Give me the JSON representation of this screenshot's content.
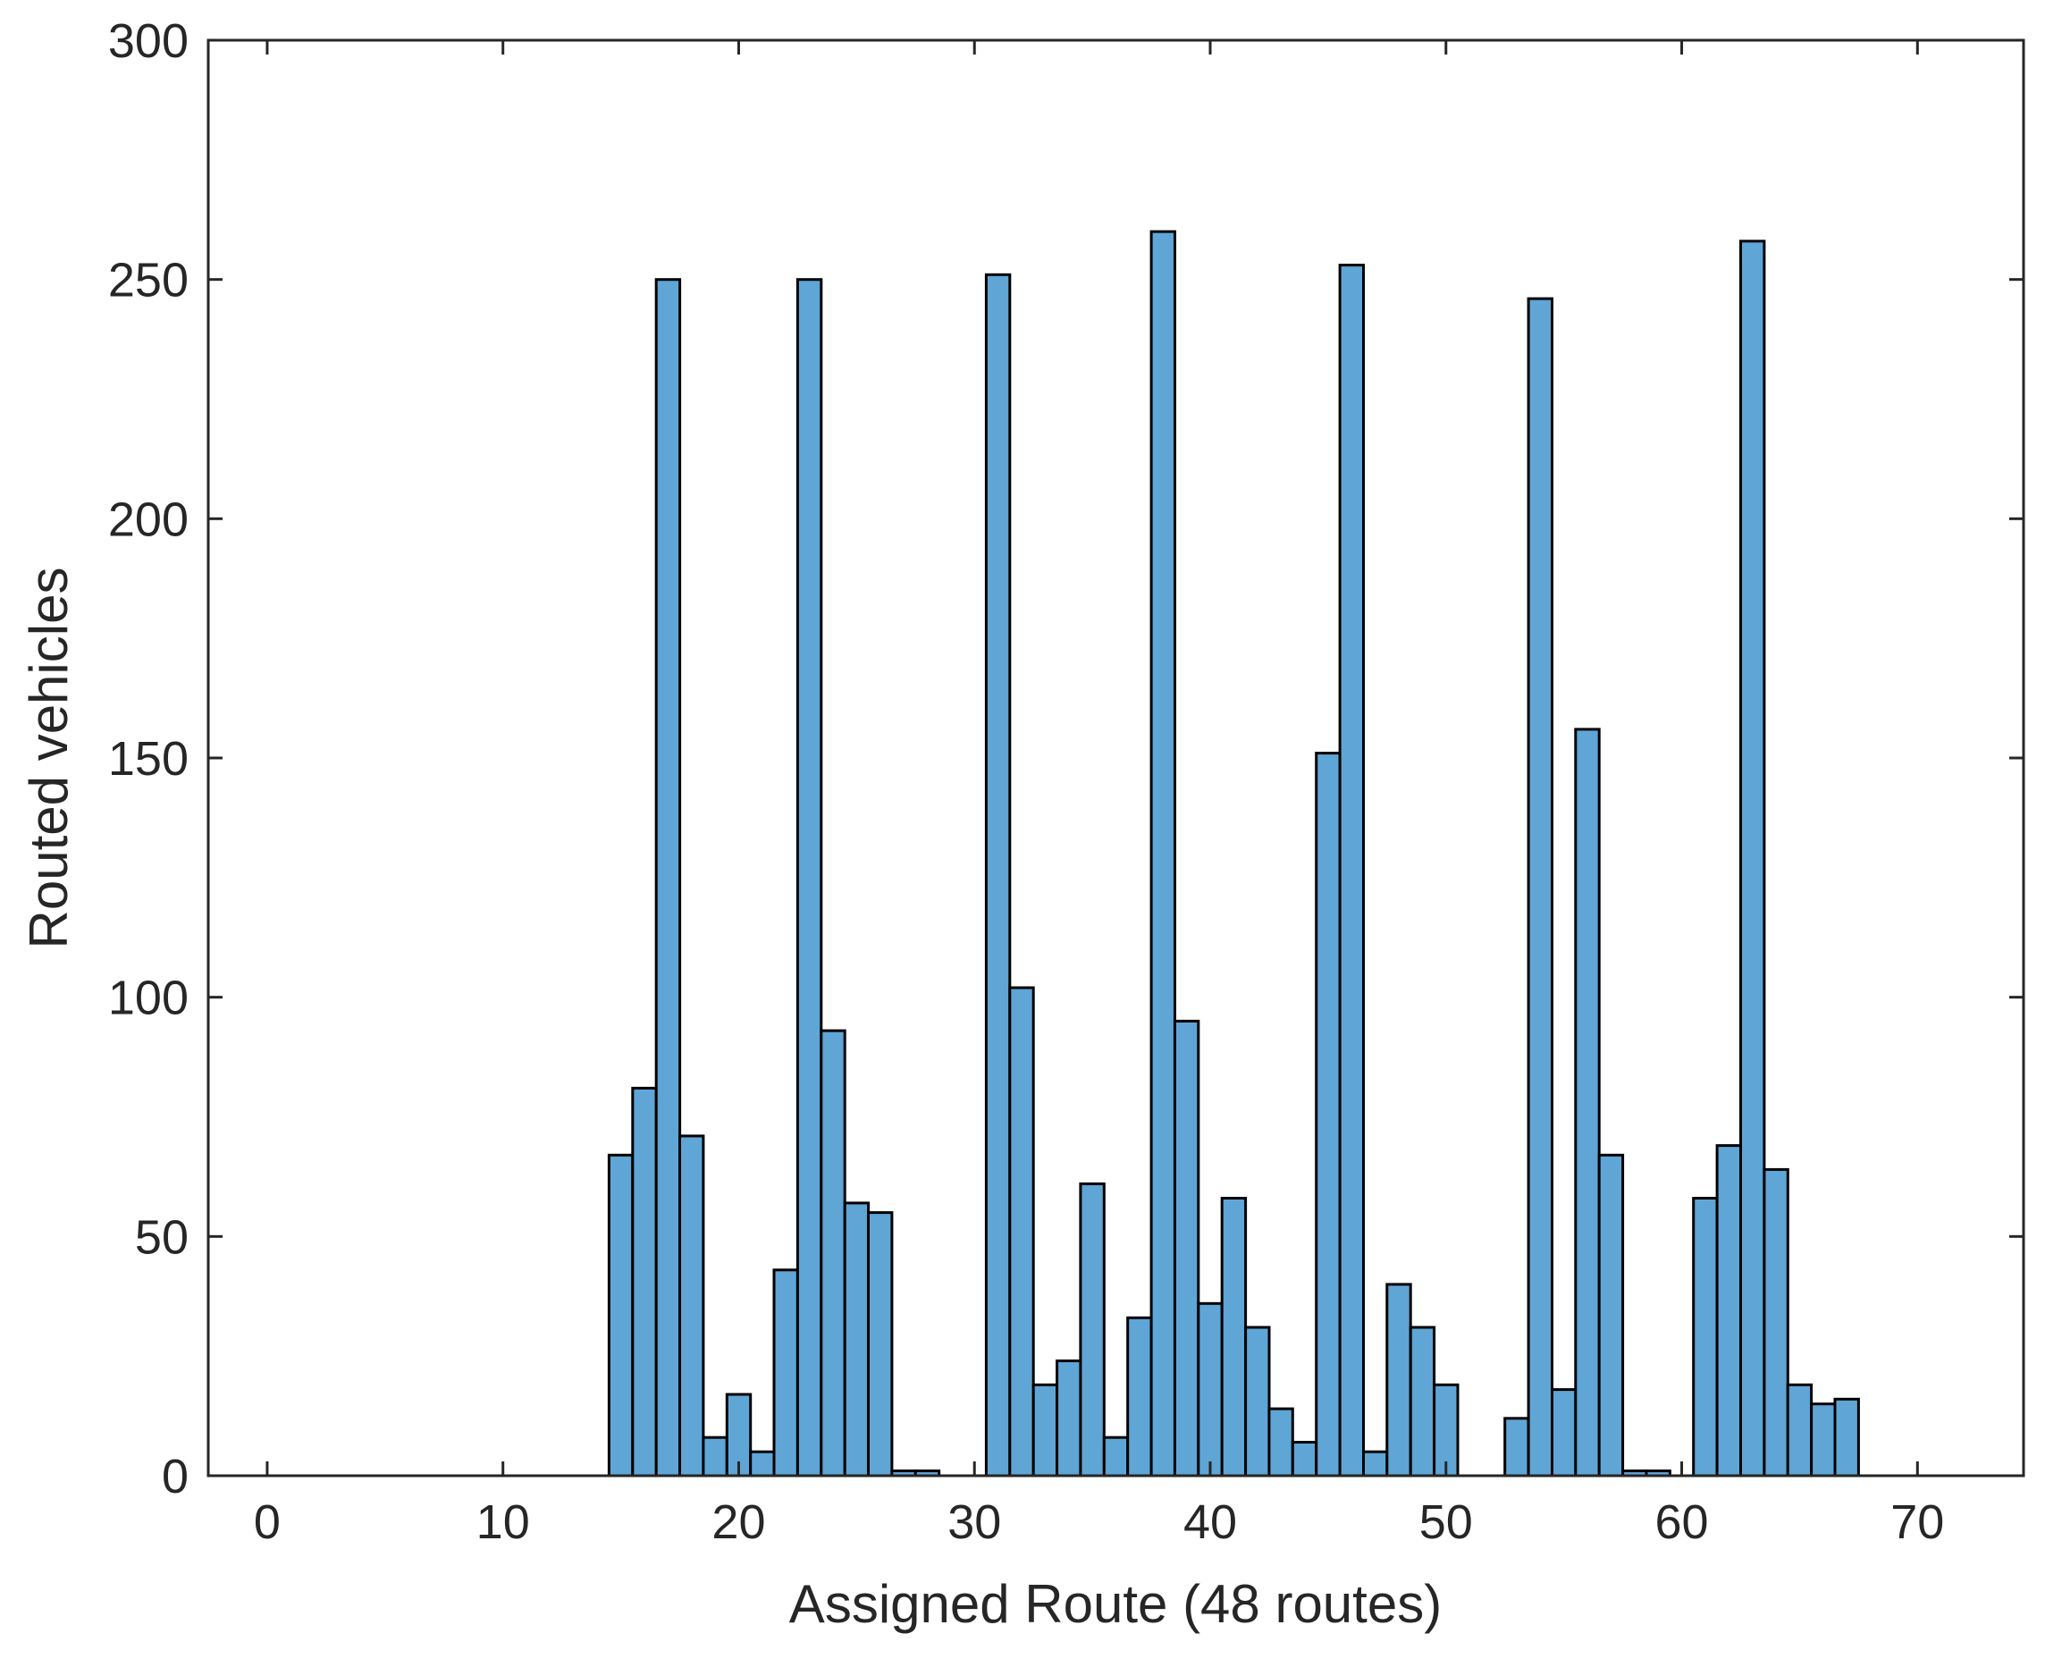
{
  "chart_data": {
    "type": "bar",
    "title": "",
    "xlabel": "Assigned Route (48 routes)",
    "ylabel": "Routed vehicles",
    "xlim": [
      -2.5,
      74.5
    ],
    "ylim": [
      0,
      300
    ],
    "xticks": [
      0,
      10,
      20,
      30,
      40,
      50,
      60,
      70
    ],
    "yticks": [
      0,
      50,
      100,
      150,
      200,
      250,
      300
    ],
    "bar_width": 1,
    "grid": false,
    "legend": false,
    "colors": {
      "bar_fill": "#5fa5d6",
      "bar_edge": "#000000",
      "axes": "#262626"
    },
    "x": [
      15,
      16,
      17,
      18,
      19,
      20,
      21,
      22,
      23,
      24,
      25,
      26,
      27,
      28,
      31,
      32,
      33,
      34,
      35,
      36,
      37,
      38,
      39,
      40,
      41,
      42,
      43,
      44,
      45,
      46,
      47,
      48,
      49,
      50,
      53,
      54,
      55,
      56,
      57,
      58,
      59,
      61,
      62,
      63,
      64,
      65,
      66,
      67
    ],
    "values": [
      67,
      81,
      250,
      71,
      8,
      17,
      5,
      43,
      250,
      93,
      57,
      55,
      1,
      1,
      251,
      102,
      19,
      24,
      61,
      8,
      33,
      260,
      95,
      36,
      58,
      31,
      14,
      7,
      151,
      253,
      5,
      40,
      31,
      19,
      12,
      246,
      18,
      156,
      67,
      1,
      1,
      58,
      69,
      258,
      64,
      19,
      15,
      16
    ]
  }
}
